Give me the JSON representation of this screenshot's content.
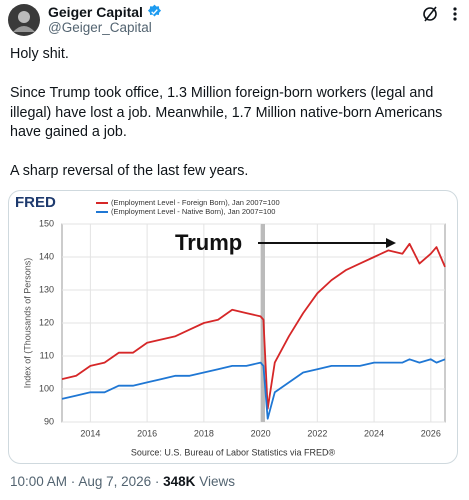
{
  "tweet": {
    "author": "Geiger Capital",
    "handle": "@Geiger_Capital",
    "paragraphs": [
      "Holy shit.",
      "Since Trump took office, 1.3 Million foreign-born workers (legal and illegal) have lost a job. Meanwhile, 1.7 Million native-born Americans have gained a job.",
      "A sharp reversal of the last few years."
    ],
    "time": "10:00 AM",
    "date": "Aug 7, 2026",
    "views": "348K",
    "views_label": "Views"
  },
  "chart_data": {
    "type": "line",
    "logo": "FRED",
    "ylabel": "Index of (Thousands of Persons)",
    "annotation": "Trump",
    "source": "Source: U.S. Bureau of Labor Statistics via FRED®",
    "x": [
      2013,
      2013.5,
      2014,
      2014.5,
      2015,
      2015.5,
      2016,
      2016.5,
      2017,
      2017.5,
      2018,
      2018.5,
      2019,
      2019.5,
      2020,
      2020.1,
      2020.25,
      2020.5,
      2021,
      2021.5,
      2022,
      2022.5,
      2023,
      2023.5,
      2024,
      2024.5,
      2025,
      2025.25,
      2025.6,
      2026,
      2026.2,
      2026.5
    ],
    "series": [
      {
        "name": "(Employment Level - Foreign Born), Jan 2007=100",
        "color": "#d62728",
        "values": [
          103,
          104,
          107,
          108,
          111,
          111,
          114,
          115,
          116,
          118,
          120,
          121,
          124,
          123,
          122,
          121,
          94,
          108,
          116,
          123,
          129,
          133,
          136,
          138,
          140,
          142,
          141,
          144,
          138,
          141,
          143,
          137
        ]
      },
      {
        "name": "(Employment Level - Native Born), Jan 2007=100",
        "color": "#1f77d4",
        "values": [
          97,
          98,
          99,
          99,
          101,
          101,
          102,
          103,
          104,
          104,
          105,
          106,
          107,
          107,
          108,
          107,
          91,
          99,
          102,
          105,
          106,
          107,
          107,
          107,
          108,
          108,
          108,
          109,
          108,
          109,
          108,
          109
        ]
      }
    ],
    "xlim": [
      2013,
      2026.5
    ],
    "xticks": [
      2014,
      2016,
      2018,
      2020,
      2022,
      2024,
      2026
    ],
    "ylim": [
      90,
      150
    ],
    "yticks": [
      90,
      100,
      110,
      120,
      130,
      140,
      150
    ],
    "grid": true
  }
}
